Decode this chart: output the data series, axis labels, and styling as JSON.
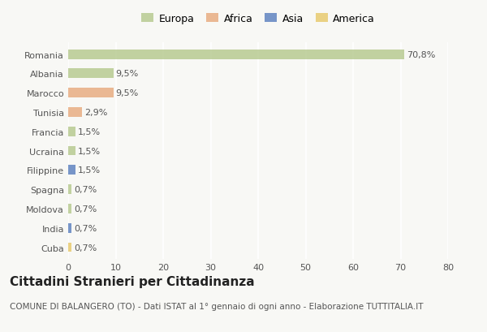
{
  "countries": [
    "Romania",
    "Albania",
    "Marocco",
    "Tunisia",
    "Francia",
    "Ucraina",
    "Filippine",
    "Spagna",
    "Moldova",
    "India",
    "Cuba"
  ],
  "values": [
    70.8,
    9.5,
    9.5,
    2.9,
    1.5,
    1.5,
    1.5,
    0.7,
    0.7,
    0.7,
    0.7
  ],
  "labels": [
    "70,8%",
    "9,5%",
    "9,5%",
    "2,9%",
    "1,5%",
    "1,5%",
    "1,5%",
    "0,7%",
    "0,7%",
    "0,7%",
    "0,7%"
  ],
  "colors": [
    "#b5c98e",
    "#b5c98e",
    "#e8aa7e",
    "#e8aa7e",
    "#b5c98e",
    "#b5c98e",
    "#5b7fbf",
    "#b5c98e",
    "#b5c98e",
    "#5b7fbf",
    "#e8c96a"
  ],
  "legend_labels": [
    "Europa",
    "Africa",
    "Asia",
    "America"
  ],
  "legend_colors": [
    "#b5c98e",
    "#e8aa7e",
    "#5b7fbf",
    "#e8c96a"
  ],
  "xlim": [
    0,
    80
  ],
  "xticks": [
    0,
    10,
    20,
    30,
    40,
    50,
    60,
    70,
    80
  ],
  "title": "Cittadini Stranieri per Cittadinanza",
  "subtitle": "COMUNE DI BALANGERO (TO) - Dati ISTAT al 1° gennaio di ogni anno - Elaborazione TUTTITALIA.IT",
  "background_color": "#f8f8f5",
  "bar_height": 0.5,
  "title_fontsize": 11,
  "subtitle_fontsize": 7.5,
  "tick_fontsize": 8,
  "label_fontsize": 8,
  "legend_fontsize": 9
}
